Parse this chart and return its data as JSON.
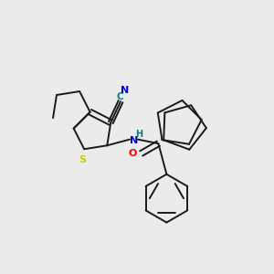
{
  "background_color": "#ebebeb",
  "bond_color": "#1a1a1a",
  "atom_colors": {
    "N": "#0000cc",
    "S": "#cccc00",
    "O": "#ff0000",
    "CN_C": "#008080",
    "CN_N": "#0000cc",
    "H": "#008080"
  },
  "figsize": [
    3.0,
    3.0
  ],
  "dpi": 100
}
